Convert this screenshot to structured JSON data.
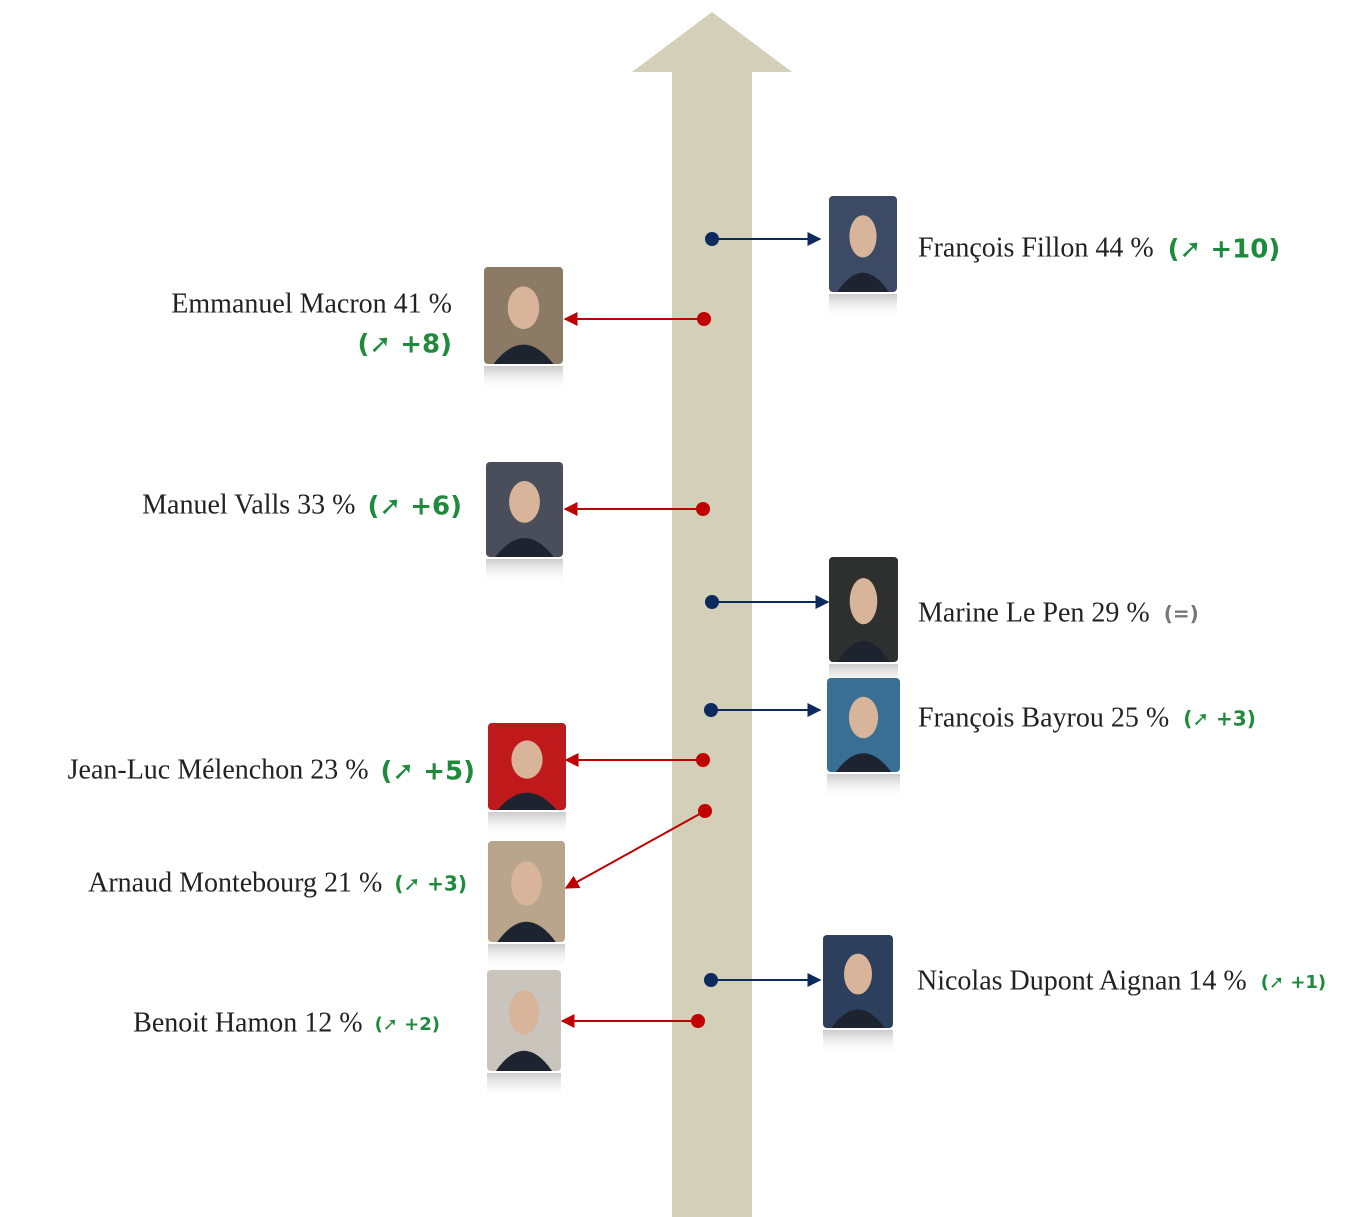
{
  "candidates": [
    {
      "label": "François Fillon 44 %",
      "change": "(➚ +10)"
    },
    {
      "label": "Emmanuel Macron 41 %",
      "change": "(➚ +8)"
    },
    {
      "label": "Manuel Valls 33 %",
      "change": "(➚ +6)"
    },
    {
      "label": "Marine Le Pen 29 %",
      "change": "(=)"
    },
    {
      "label": "François Bayrou 25 %",
      "change": "(➚ +3)"
    },
    {
      "label": "Jean-Luc Mélenchon 23 %",
      "change": "(➚ +5)"
    },
    {
      "label": "Arnaud Montebourg 21 %",
      "change": "(➚ +3)"
    },
    {
      "label": "Nicolas Dupont Aignan 14 %",
      "change": "(➚ +1)"
    },
    {
      "label": "Benoit Hamon 12 %",
      "change": "(➚ +2)"
    }
  ]
}
